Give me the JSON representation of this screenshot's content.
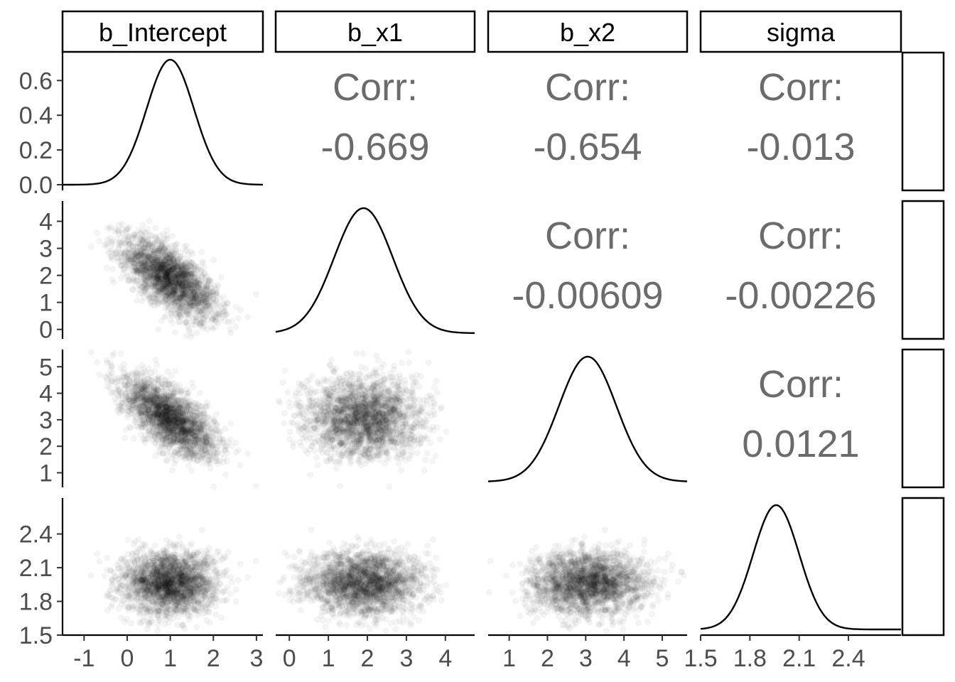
{
  "chart_data": {
    "type": "scatter",
    "variables": [
      "b_Intercept",
      "b_x1",
      "b_x2",
      "sigma"
    ],
    "ticks": {
      "b_Intercept": [
        -1,
        0,
        1,
        2,
        3
      ],
      "b_x1": [
        0,
        1,
        2,
        3,
        4
      ],
      "b_x2": [
        1,
        2,
        3,
        4,
        5
      ],
      "sigma": [
        1.5,
        1.8,
        2.1,
        2.4
      ]
    },
    "tick_labels": {
      "b_Intercept": [
        "-1",
        "0",
        "1",
        "2",
        "3"
      ],
      "b_x1": [
        "0",
        "1",
        "2",
        "3",
        "4"
      ],
      "b_x2": [
        "1",
        "2",
        "3",
        "4",
        "5"
      ],
      "sigma": [
        "1.5",
        "1.8",
        "2.1",
        "2.4"
      ]
    },
    "ranges": {
      "b_Intercept": [
        -1.5,
        3.15
      ],
      "b_x1": [
        -0.35,
        4.75
      ],
      "b_x2": [
        0.45,
        5.65
      ],
      "sigma": [
        1.5,
        2.72
      ]
    },
    "density_ylim": [
      0,
      0.75
    ],
    "density_ticks": [
      0.0,
      0.2,
      0.4,
      0.6
    ],
    "density_tick_labels": [
      "0.0",
      "0.2",
      "0.4",
      "0.6"
    ],
    "posterior_summary": {
      "b_Intercept": {
        "mean": 1.0,
        "sd": 0.55
      },
      "b_x1": {
        "mean": 1.9,
        "sd": 0.75
      },
      "b_x2": {
        "mean": 3.05,
        "sd": 0.75
      },
      "sigma": {
        "mean": 1.96,
        "sd": 0.14
      }
    },
    "correlations": [
      {
        "row": "b_Intercept",
        "col": "b_x1",
        "label": "Corr:",
        "value": "-0.669"
      },
      {
        "row": "b_Intercept",
        "col": "b_x2",
        "label": "Corr:",
        "value": "-0.654"
      },
      {
        "row": "b_Intercept",
        "col": "sigma",
        "label": "Corr:",
        "value": "-0.013"
      },
      {
        "row": "b_x1",
        "col": "b_x2",
        "label": "Corr:",
        "value": "-0.00609"
      },
      {
        "row": "b_x1",
        "col": "sigma",
        "label": "Corr:",
        "value": "-0.00226"
      },
      {
        "row": "b_x2",
        "col": "sigma",
        "label": "Corr:",
        "value": "0.0121"
      }
    ],
    "grid": false
  }
}
